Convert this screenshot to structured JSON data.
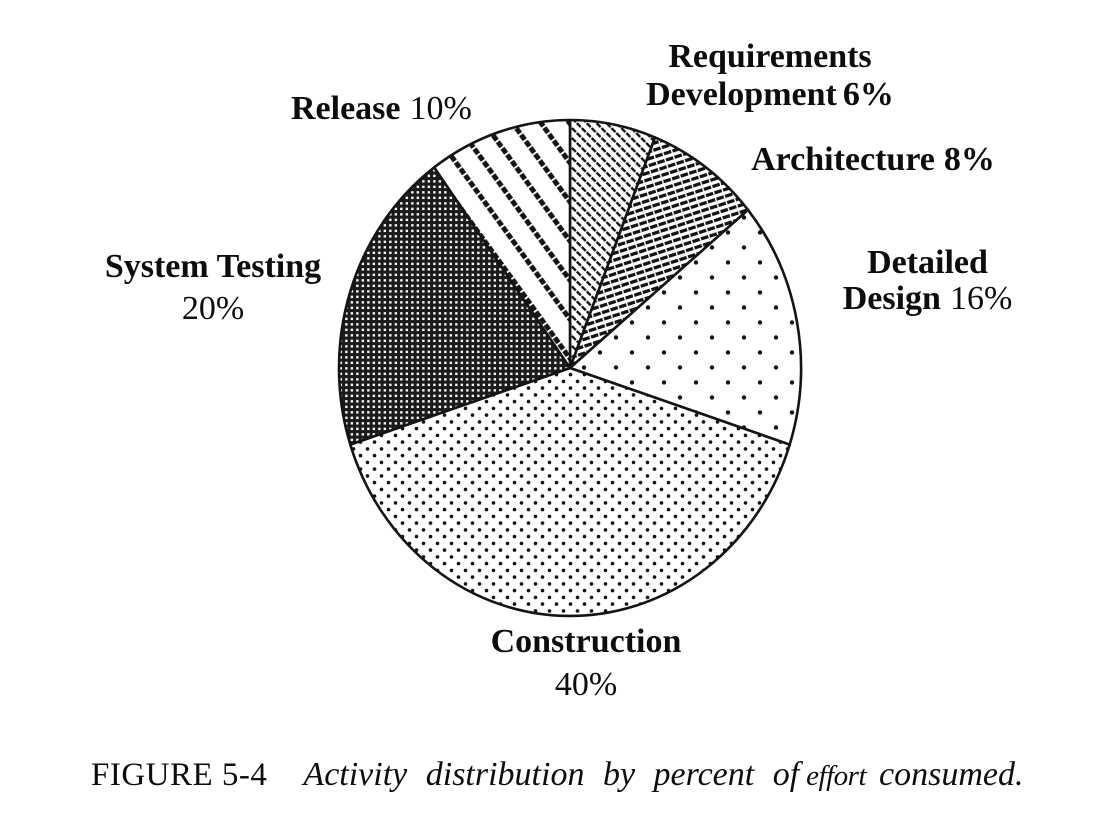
{
  "colors": {
    "ink": "#141414",
    "paper": "#ffffff"
  },
  "chart_data": {
    "type": "pie",
    "title": "",
    "start_angle_deg": 0,
    "direction": "clockwise",
    "slices": [
      {
        "id": "requirements-development",
        "label": "Requirements Development",
        "value": 6,
        "pct_text": "6%",
        "pattern": "thin-backslash-hatch"
      },
      {
        "id": "architecture",
        "label": "Architecture",
        "value": 8,
        "pct_text": "8%",
        "pattern": "bold-shallow-stripes"
      },
      {
        "id": "detailed-design",
        "label": "Detailed Design",
        "value": 16,
        "pct_text": "16%",
        "pattern": "sparse-dots"
      },
      {
        "id": "construction",
        "label": "Construction",
        "value": 40,
        "pct_text": "40%",
        "pattern": "dense-dots"
      },
      {
        "id": "system-testing",
        "label": "System Testing",
        "value": 20,
        "pct_text": "20%",
        "pattern": "dark-weave"
      },
      {
        "id": "release",
        "label": "Release",
        "value": 10,
        "pct_text": "10%",
        "pattern": "wide-backslash-stripes"
      }
    ]
  },
  "labels": {
    "requirements_line1": "Requirements",
    "requirements_line2": "Development",
    "requirements_pct": "6%",
    "architecture_name": "Architecture",
    "architecture_pct": "8%",
    "detailed_line1": "Detailed",
    "detailed_line2": "Design",
    "detailed_pct": "16%",
    "construction_name": "Construction",
    "construction_pct": "40%",
    "system_name": "System Testing",
    "system_pct": "20%",
    "release_name": "Release",
    "release_pct": "10%"
  },
  "caption": {
    "figure_label": "FIGURE 5-4",
    "text_main": "Activity distribution by percent of",
    "text_effort": "effort",
    "text_end": "consumed."
  }
}
